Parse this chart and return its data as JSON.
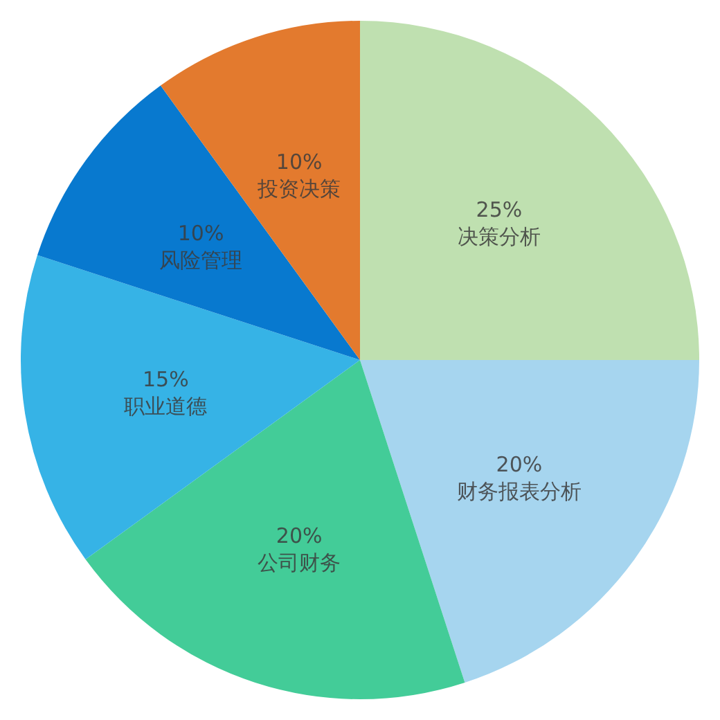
{
  "chart_data": {
    "type": "pie",
    "categories": [
      "决策分析",
      "财务报表分析",
      "公司财务",
      "职业道德",
      "风险管理",
      "投资决策"
    ],
    "values": [
      25,
      20,
      20,
      15,
      10,
      10
    ],
    "value_labels": [
      "25%",
      "20%",
      "20%",
      "15%",
      "10%",
      "10%"
    ],
    "colors": [
      "#bfe0b0",
      "#a6d5ef",
      "#43cc98",
      "#36b3e6",
      "#0879cf",
      "#e37a2e"
    ],
    "legend": false
  }
}
